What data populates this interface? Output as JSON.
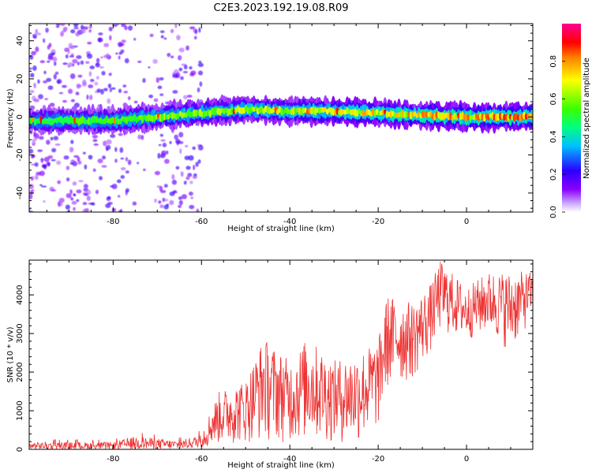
{
  "title": "C2E3.2023.192.19.08.R09",
  "chart_data": [
    {
      "type": "heatmap",
      "title": "C2E3.2023.192.19.08.R09",
      "xlabel": "Height of straight line (km)",
      "ylabel": "Frequency (Hz)",
      "xlim": [
        -99,
        15
      ],
      "ylim": [
        -50,
        49
      ],
      "xticks": [
        -80,
        -60,
        -40,
        -20,
        0
      ],
      "yticks": [
        -40,
        -20,
        0,
        20,
        40
      ],
      "colorbar": {
        "label": "Normalized spectral amplitude",
        "range": [
          0,
          1
        ],
        "ticks": [
          "0.0",
          "0.2",
          "0.4",
          "0.6",
          "0.8"
        ],
        "colors": [
          "#ffffff",
          "#c9a0ff",
          "#8a00ff",
          "#2a00ff",
          "#00bfff",
          "#00ff7f",
          "#3cff00",
          "#ffff00",
          "#ff8000",
          "#ff0000",
          "#ff0090"
        ]
      },
      "signal_band": {
        "x_start": -99,
        "x_end": 15,
        "center_frequency_profile": [
          {
            "x": -99,
            "f": -2
          },
          {
            "x": -80,
            "f": -2
          },
          {
            "x": -70,
            "f": 0
          },
          {
            "x": -60,
            "f": 2
          },
          {
            "x": -50,
            "f": 4
          },
          {
            "x": -40,
            "f": 3
          },
          {
            "x": -30,
            "f": 3
          },
          {
            "x": -20,
            "f": 2
          },
          {
            "x": -10,
            "f": 1
          },
          {
            "x": 0,
            "f": 0
          },
          {
            "x": 15,
            "f": 0
          }
        ],
        "peak_amplitude": 0.9
      },
      "noise_region": {
        "x_start": -99,
        "x_end": -60,
        "f_range": [
          -50,
          49
        ],
        "amplitude": 0.3
      }
    },
    {
      "type": "line",
      "xlabel": "Height of straight line (km)",
      "ylabel": "SNR (10 * v/v)",
      "xlim": [
        -99,
        15
      ],
      "ylim": [
        0,
        4900
      ],
      "xticks": [
        -80,
        -60,
        -40,
        -20,
        0
      ],
      "yticks": [
        0,
        1000,
        2000,
        3000,
        4000
      ],
      "color": "#ee3333",
      "envelope": [
        {
          "x": -99,
          "low": 0,
          "high": 250
        },
        {
          "x": -80,
          "low": 0,
          "high": 250
        },
        {
          "x": -75,
          "low": 0,
          "high": 450
        },
        {
          "x": -65,
          "low": 0,
          "high": 300
        },
        {
          "x": -60,
          "low": 50,
          "high": 500
        },
        {
          "x": -56,
          "low": 100,
          "high": 1500
        },
        {
          "x": -50,
          "low": 150,
          "high": 1800
        },
        {
          "x": -46,
          "low": 200,
          "high": 2900
        },
        {
          "x": -40,
          "low": 150,
          "high": 2300
        },
        {
          "x": -36,
          "low": 200,
          "high": 2900
        },
        {
          "x": -30,
          "low": 150,
          "high": 2300
        },
        {
          "x": -25,
          "low": 100,
          "high": 2500
        },
        {
          "x": -20,
          "low": 500,
          "high": 2800
        },
        {
          "x": -18,
          "low": 1500,
          "high": 4000
        },
        {
          "x": -12,
          "low": 1800,
          "high": 3800
        },
        {
          "x": -8,
          "low": 2500,
          "high": 4300
        },
        {
          "x": -6,
          "low": 3000,
          "high": 4900
        },
        {
          "x": 0,
          "low": 2800,
          "high": 4200
        },
        {
          "x": 5,
          "low": 3000,
          "high": 4600
        },
        {
          "x": 10,
          "low": 2500,
          "high": 4600
        },
        {
          "x": 15,
          "low": 3400,
          "high": 4600
        }
      ]
    }
  ]
}
